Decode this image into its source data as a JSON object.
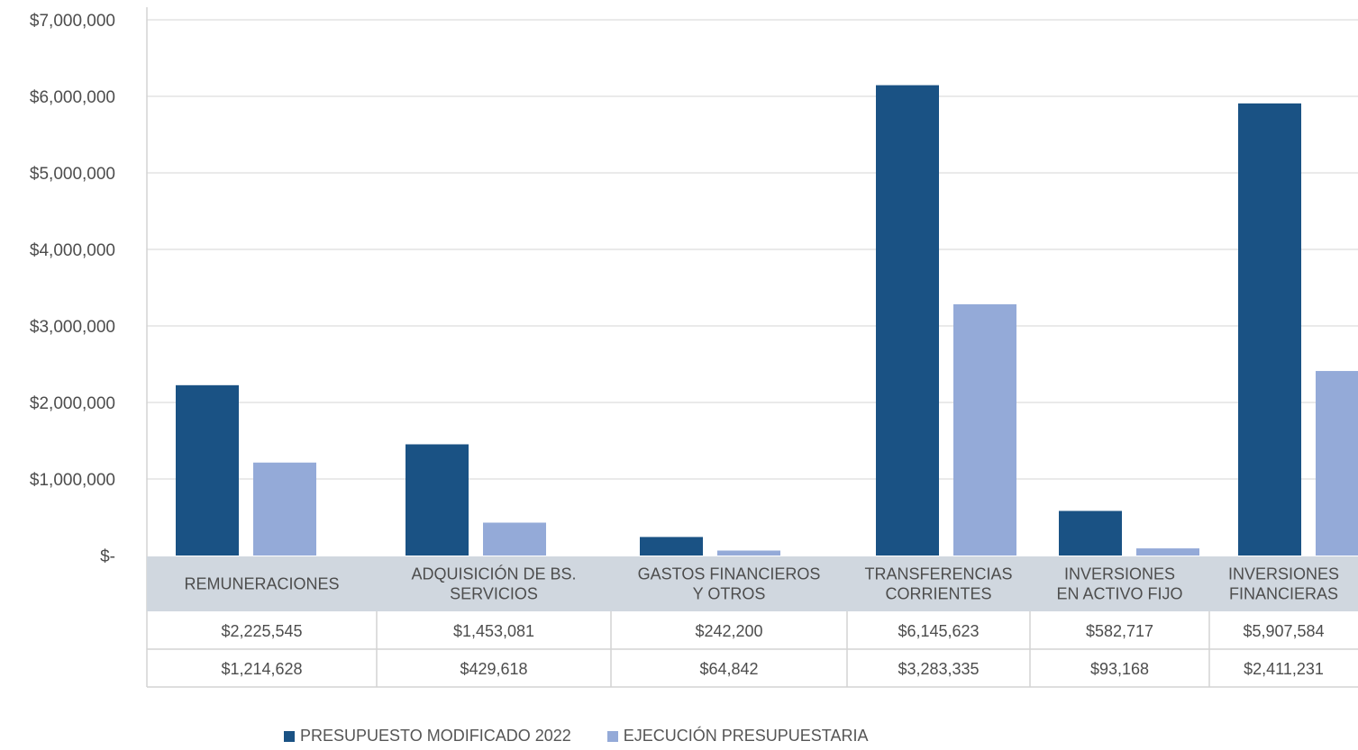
{
  "chart_data": {
    "type": "bar",
    "categories": [
      [
        "REMUNERACIONES"
      ],
      [
        "ADQUISICIÓN DE BS.",
        "SERVICIOS"
      ],
      [
        "GASTOS FINANCIEROS",
        "Y OTROS"
      ],
      [
        "TRANSFERENCIAS",
        "CORRIENTES"
      ],
      [
        "INVERSIONES",
        "EN ACTIVO FIJO"
      ],
      [
        "INVERSIONES",
        "FINANCIERAS"
      ]
    ],
    "series": [
      {
        "name": "PRESUPUESTO MODIFICADO 2022",
        "color": "#1a5284",
        "values": [
          2225545,
          1453081,
          242200,
          6145623,
          582717,
          5907584
        ],
        "labels": [
          "$2,225,545",
          "$1,453,081",
          "$242,200",
          "$6,145,623",
          "$582,717",
          "$5,907,584"
        ]
      },
      {
        "name": "EJECUCIÓN PRESUPUESTARIA",
        "color": "#94aad8",
        "values": [
          1214628,
          429618,
          64842,
          3283335,
          93168,
          2411231
        ],
        "labels": [
          "$1,214,628",
          "$429,618",
          "$64,842",
          "$3,283,335",
          "$93,168",
          "$2,411,231"
        ]
      }
    ],
    "ylim": [
      0,
      7000000
    ],
    "yticks": [
      {
        "value": 0,
        "label": "$-"
      },
      {
        "value": 1000000,
        "label": "$1,000,000"
      },
      {
        "value": 2000000,
        "label": "$2,000,000"
      },
      {
        "value": 3000000,
        "label": "$3,000,000"
      },
      {
        "value": 4000000,
        "label": "$4,000,000"
      },
      {
        "value": 5000000,
        "label": "$5,000,000"
      },
      {
        "value": 6000000,
        "label": "$6,000,000"
      },
      {
        "value": 7000000,
        "label": "$7,000,000"
      }
    ],
    "grid": true,
    "legend_position": "bottom",
    "data_table": true
  }
}
